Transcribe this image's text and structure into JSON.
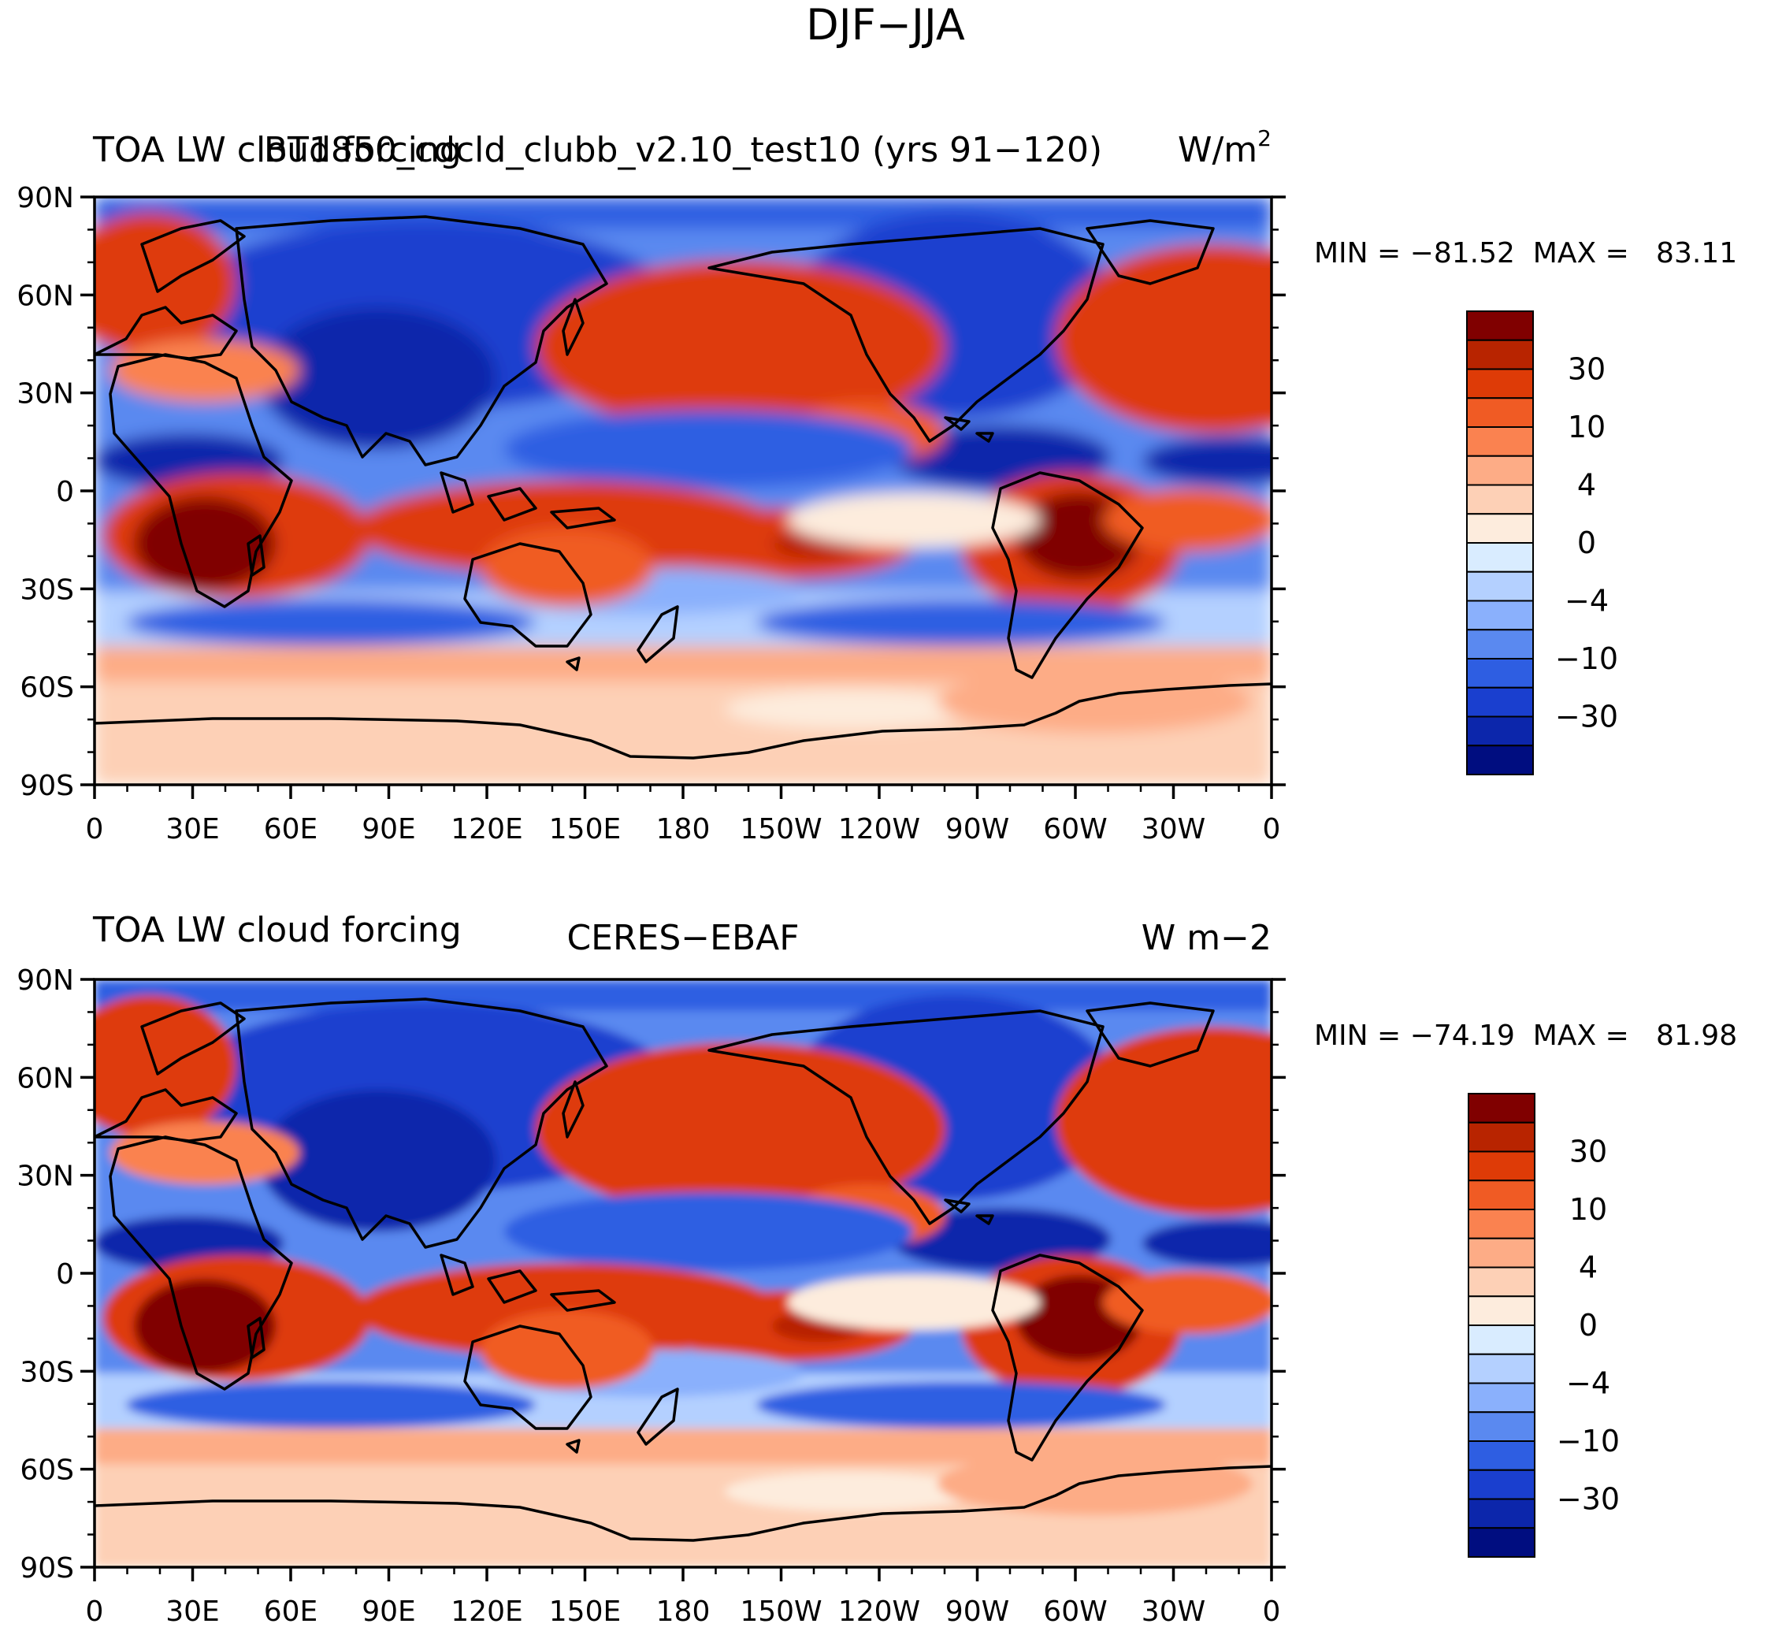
{
  "title": "DJF−JJA",
  "panels": [
    {
      "id": "top",
      "left_title": "TOA LW cloud forcing",
      "center_title": "BT1850_cdcld_clubb_v2.10_test10 (yrs 91−120)",
      "right_title": "W/m",
      "right_title_sup": "2",
      "stats": "MIN = −81.52  MAX =   83.11"
    },
    {
      "id": "bottom",
      "left_title": "TOA LW cloud forcing",
      "center_title": "CERES−EBAF",
      "right_title": "W m−2",
      "right_title_sup": "",
      "stats": "MIN = −74.19  MAX =   81.98"
    }
  ],
  "lat_labels": [
    "90N",
    "60N",
    "30N",
    "0",
    "30S",
    "60S",
    "90S"
  ],
  "lon_labels": [
    "0",
    "30E",
    "60E",
    "90E",
    "120E",
    "150E",
    "180",
    "150W",
    "120W",
    "90W",
    "60W",
    "30W",
    "0"
  ],
  "colorbar": {
    "labels": [
      "30",
      "10",
      "4",
      "0",
      "−4",
      "−10",
      "−30"
    ],
    "colors_top_to_bottom": [
      "#800000",
      "#b82400",
      "#de3b07",
      "#f05b24",
      "#fa8250",
      "#fdac86",
      "#fdd0b6",
      "#fdecdd",
      "#d9ecff",
      "#b4d0ff",
      "#8ab0fc",
      "#5a89f0",
      "#2e5ee2",
      "#1a3fcf",
      "#0c26ab",
      "#000d80"
    ]
  },
  "colors": {
    "ocean_deep_blue": "#0c26ab",
    "blue": "#2e5ee2",
    "light_blue": "#8ab0fc",
    "pale_blue": "#d9ecff",
    "cream": "#fdecdd",
    "salmon": "#fdac86",
    "orange_red": "#de3b07",
    "dark_red": "#800000"
  }
}
